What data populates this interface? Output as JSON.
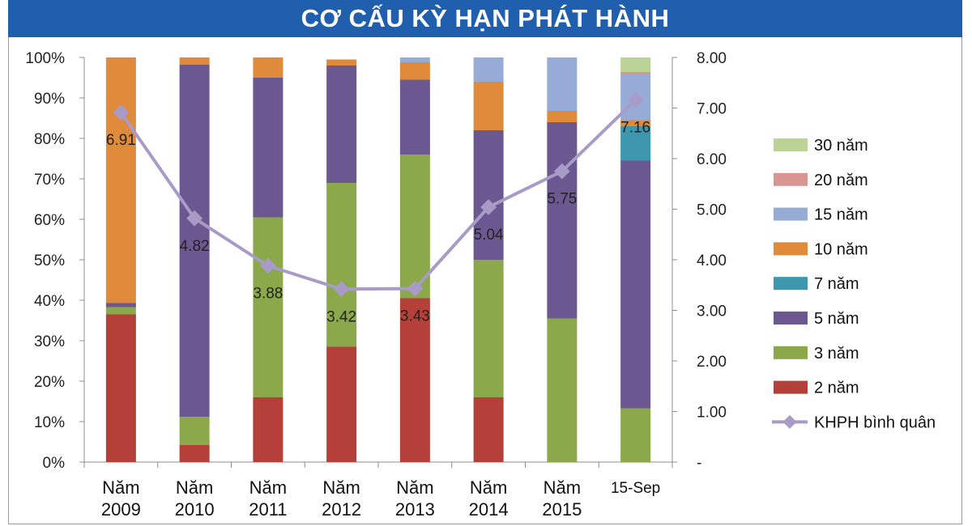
{
  "title": "CƠ CẤU KỲ HẠN PHÁT HÀNH",
  "chart_data": {
    "type": "bar",
    "stacked": true,
    "percent_stacked": true,
    "categories": [
      [
        "Năm",
        "2009"
      ],
      [
        "Năm",
        "2010"
      ],
      [
        "Năm",
        "2011"
      ],
      [
        "Năm",
        "2012"
      ],
      [
        "Năm",
        "2013"
      ],
      [
        "Năm",
        "2014"
      ],
      [
        "Năm",
        "2015"
      ],
      [
        "15-Sep"
      ]
    ],
    "y_left": {
      "lim": [
        0,
        100
      ],
      "ticks": [
        "0%",
        "10%",
        "20%",
        "30%",
        "40%",
        "50%",
        "60%",
        "70%",
        "80%",
        "90%",
        "100%"
      ]
    },
    "y_right": {
      "lim": [
        0,
        8
      ],
      "ticks": [
        "-",
        "1.00",
        "2.00",
        "3.00",
        "4.00",
        "5.00",
        "6.00",
        "7.00",
        "8.00"
      ]
    },
    "series": [
      {
        "name": "2 năm",
        "color": "#b5403a",
        "values": [
          36.5,
          4.2,
          16.0,
          28.5,
          40.5,
          16.0,
          0,
          0
        ]
      },
      {
        "name": "3 năm",
        "color": "#8ba84a",
        "values": [
          1.8,
          7.0,
          44.5,
          40.5,
          35.5,
          34.0,
          35.5,
          13.3
        ]
      },
      {
        "name": "5 năm",
        "color": "#6c5891",
        "values": [
          1.0,
          87.0,
          34.5,
          29.0,
          18.5,
          32.0,
          48.5,
          61.2
        ]
      },
      {
        "name": "7 năm",
        "color": "#3d97ae",
        "values": [
          0,
          0,
          0,
          0,
          0,
          0,
          0,
          8.5
        ]
      },
      {
        "name": "10 năm",
        "color": "#e08a3c",
        "values": [
          60.7,
          1.8,
          5.0,
          1.5,
          4.3,
          12.0,
          2.8,
          1.5
        ]
      },
      {
        "name": "15 năm",
        "color": "#96acd6",
        "values": [
          0,
          0,
          0,
          0,
          1.2,
          6.0,
          13.2,
          11.5
        ]
      },
      {
        "name": "20 năm",
        "color": "#d99592",
        "values": [
          0,
          0,
          0,
          0,
          0,
          0,
          0,
          0.4
        ]
      },
      {
        "name": "30 năm",
        "color": "#bcd397",
        "values": [
          0,
          0,
          0,
          0,
          0,
          0,
          0,
          3.6
        ]
      }
    ],
    "line": {
      "name": "KHPH bình quân",
      "color": "#a89bc7",
      "axis": "right",
      "values": [
        6.91,
        4.82,
        3.88,
        3.42,
        3.43,
        5.04,
        5.75,
        7.16
      ],
      "labels": [
        "6.91",
        "4.82",
        "3.88",
        "3.42",
        "3.43",
        "5.04",
        "5.75",
        "7.16"
      ]
    },
    "legend_order": [
      "30 năm",
      "20 năm",
      "15 năm",
      "10 năm",
      "7 năm",
      "5 năm",
      "3 năm",
      "2 năm",
      "KHPH bình quân"
    ],
    "legend_position": "right",
    "grid": false
  }
}
